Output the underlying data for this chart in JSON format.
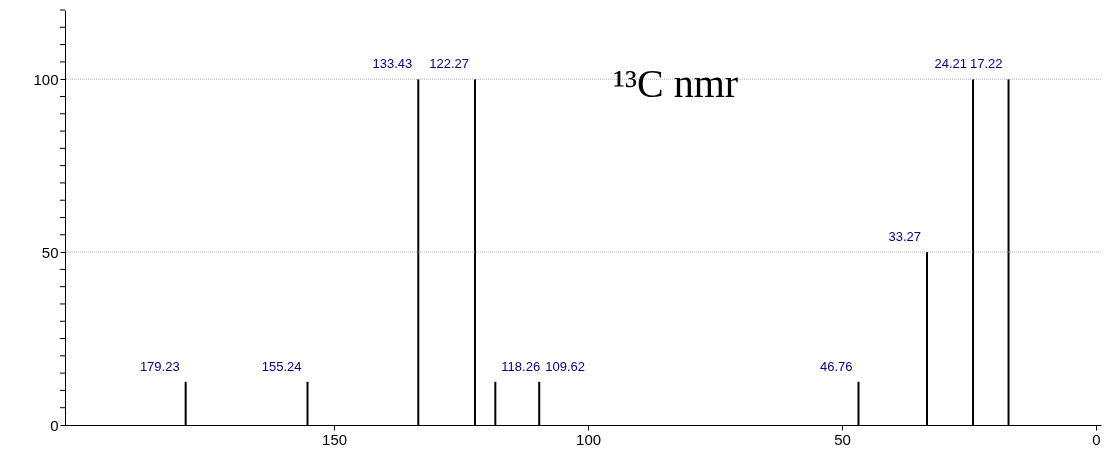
{
  "chart_data": {
    "type": "bar",
    "x": [
      179.23,
      155.24,
      133.43,
      122.27,
      118.26,
      109.62,
      46.76,
      33.27,
      24.21,
      17.22
    ],
    "values": [
      12.5,
      12.5,
      100,
      100,
      12.5,
      12.5,
      12.5,
      50,
      100,
      100
    ],
    "color": "#000000",
    "xlim": [
      202,
      0
    ],
    "xticks": [
      150,
      100,
      50,
      0
    ],
    "ylim": [
      0,
      120
    ],
    "yticks": [
      0,
      {
        "value": 5,
        "label": null
      },
      {
        "value": 10,
        "label": null
      },
      {
        "value": 15,
        "label": null
      },
      {
        "value": 20,
        "label": null
      },
      {
        "value": 25,
        "label": null
      },
      {
        "value": 30,
        "label": null
      },
      {
        "value": 35,
        "label": null
      },
      {
        "value": 40,
        "label": null
      },
      {
        "value": 45,
        "label": null
      },
      50,
      {
        "value": 55,
        "label": null
      },
      {
        "value": 60,
        "label": null
      },
      {
        "value": 65,
        "label": null
      },
      {
        "value": 70,
        "label": null
      },
      {
        "value": 75,
        "label": null
      },
      {
        "value": 80,
        "label": null
      },
      {
        "value": 85,
        "label": null
      },
      {
        "value": 90,
        "label": null
      },
      {
        "value": 95,
        "label": null
      },
      100,
      {
        "value": 105,
        "label": null
      },
      {
        "value": 110,
        "label": null
      },
      {
        "value": 115,
        "label": null
      },
      {
        "value": 120,
        "label": null
      }
    ],
    "grid": "y",
    "annotations": [
      {
        "text": "179.23",
        "x": 179.23,
        "y": 12.5
      },
      {
        "text": "155.24",
        "x": 155.24,
        "y": 12.5
      },
      {
        "text": "133.43",
        "x": 133.43,
        "y": 100
      },
      {
        "text": "122.27",
        "x": 122.27,
        "y": 100
      },
      {
        "text": "118.26",
        "x": 118.26,
        "y": 12.5
      },
      {
        "text": "109.62",
        "x": 109.62,
        "y": 12.5
      },
      {
        "text": "46.76",
        "x": 46.76,
        "y": 12.5
      },
      {
        "text": "33.27",
        "x": 33.27,
        "y": 50
      },
      {
        "text": "24.21",
        "x": 24.21,
        "y": 100
      },
      {
        "text": "17.22",
        "x": 17.22,
        "y": 100
      },
      "¹³C nmr"
    ]
  }
}
